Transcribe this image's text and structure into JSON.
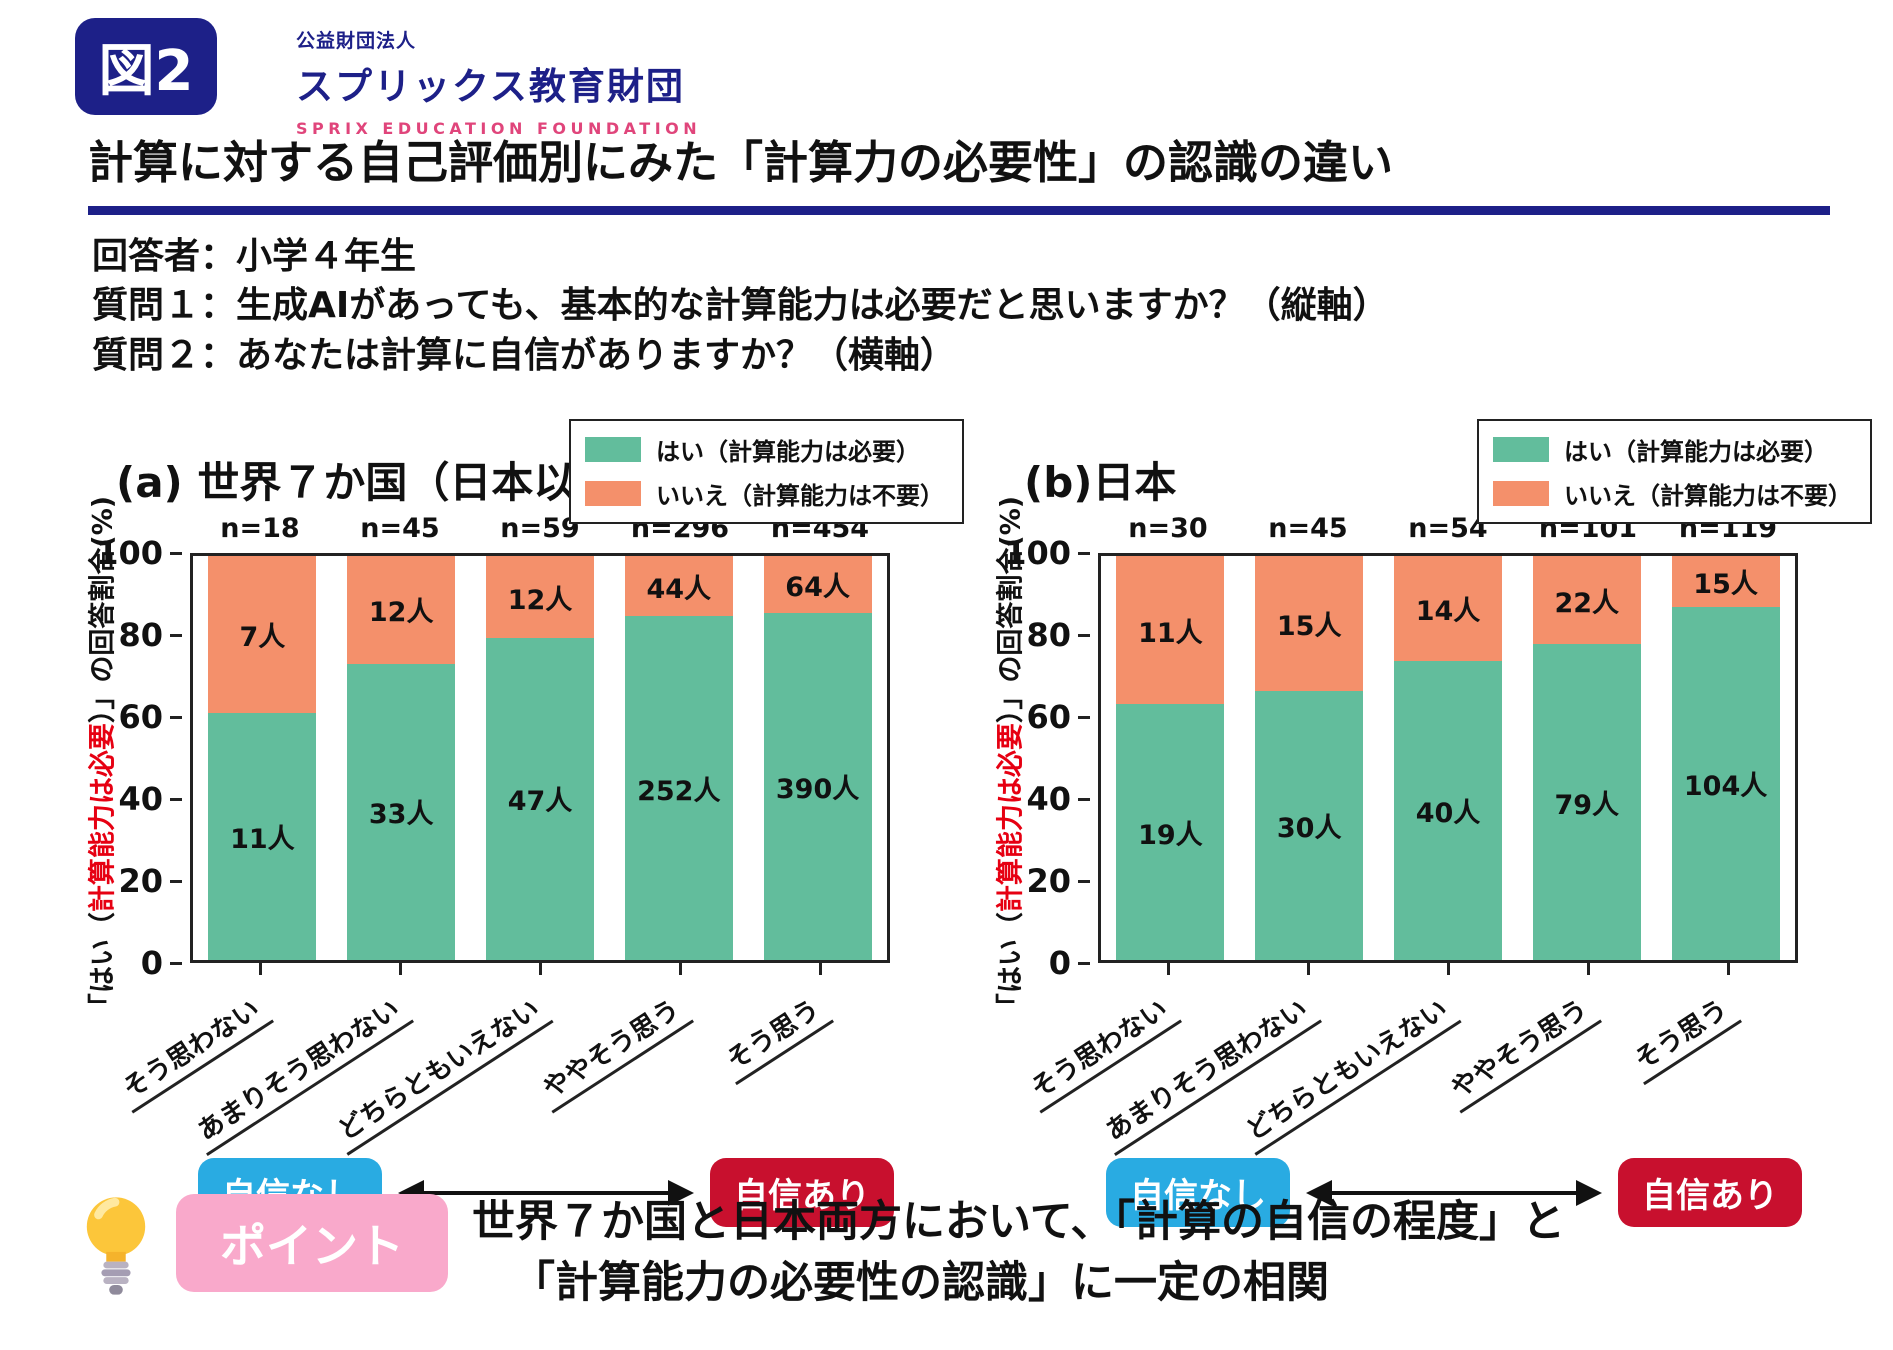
{
  "header": {
    "figure_label": "図2",
    "org_small": "公益財団法人",
    "org_name": "スプリックス教育財団",
    "org_en": "SPRIX EDUCATION FOUNDATION"
  },
  "title": "計算に対する自己評価別にみた「計算力の必要性」の認識の違い",
  "intro_lines": [
    "回答者：小学４年生",
    "質問１：生成AIがあっても、基本的な計算能力は必要だと思いますか？（縦軸）",
    "質問２：あなたは計算に自信がありますか？（横軸）"
  ],
  "legend": {
    "items": [
      {
        "label": "はい（計算能力は必要）",
        "color_key": "green"
      },
      {
        "label": "いいえ（計算能力は不要）",
        "color_key": "orange"
      }
    ]
  },
  "chart_data": [
    {
      "type": "bar",
      "stacked": true,
      "title": "(a) 世界７か国（日本以外）",
      "categories": [
        "そう思わない",
        "あまりそう思わない",
        "どちらともいえない",
        "ややそう思う",
        "そう思う"
      ],
      "n_labels": [
        "n=18",
        "n=45",
        "n=59",
        "n=296",
        "n=454"
      ],
      "series": [
        {
          "name": "はい（計算能力は必要）",
          "values": [
            11,
            33,
            47,
            252,
            390
          ],
          "value_labels": [
            "11人",
            "33人",
            "47人",
            "252人",
            "390人"
          ],
          "percent": [
            61.1,
            73.3,
            79.7,
            85.1,
            85.9
          ]
        },
        {
          "name": "いいえ（計算能力は不要）",
          "values": [
            7,
            12,
            12,
            44,
            64
          ],
          "value_labels": [
            "7人",
            "12人",
            "12人",
            "44人",
            "64人"
          ],
          "percent": [
            38.9,
            26.7,
            20.3,
            14.9,
            14.1
          ]
        }
      ],
      "ylabel_parts": {
        "prefix": "「はい（",
        "highlight": "計算能力は必要",
        "suffix": "）」の回答割合(%)"
      },
      "yticks": [
        100,
        80,
        60,
        40,
        20,
        0
      ],
      "ylim": [
        0,
        100
      ],
      "axis_note": {
        "left": "自信なし",
        "right": "自信あり"
      }
    },
    {
      "type": "bar",
      "stacked": true,
      "title": "(b)日本",
      "categories": [
        "そう思わない",
        "あまりそう思わない",
        "どちらともいえない",
        "ややそう思う",
        "そう思う"
      ],
      "n_labels": [
        "n=30",
        "n=45",
        "n=54",
        "n=101",
        "n=119"
      ],
      "series": [
        {
          "name": "はい（計算能力は必要）",
          "values": [
            19,
            30,
            40,
            79,
            104
          ],
          "value_labels": [
            "19人",
            "30人",
            "40人",
            "79人",
            "104人"
          ],
          "percent": [
            63.3,
            66.7,
            74.1,
            78.2,
            87.4
          ]
        },
        {
          "name": "いいえ（計算能力は不要）",
          "values": [
            11,
            15,
            14,
            22,
            15
          ],
          "value_labels": [
            "11人",
            "15人",
            "14人",
            "22人",
            "15人"
          ],
          "percent": [
            36.7,
            33.3,
            25.9,
            21.8,
            12.6
          ]
        }
      ],
      "ylabel_parts": {
        "prefix": "「はい（",
        "highlight": "計算能力は必要",
        "suffix": "）」の回答割合(%)"
      },
      "yticks": [
        100,
        80,
        60,
        40,
        20,
        0
      ],
      "ylim": [
        0,
        100
      ],
      "axis_note": {
        "left": "自信なし",
        "right": "自信あり"
      }
    }
  ],
  "point": {
    "badge": "ポイント",
    "line1": "世界７か国と日本両方において、「計算の自信の程度」と",
    "line2": "「計算能力の必要性の認識」に一定の相関"
  },
  "colors": {
    "navy": "#1d2088",
    "pink_accent": "#e0457b",
    "green": "#62bd9c",
    "orange": "#f4906b",
    "blue_badge": "#29abe2",
    "red_badge": "#c8102e",
    "point_pink": "#f9a9cb",
    "red_text": "#e60012",
    "axis_black": "#222222"
  }
}
